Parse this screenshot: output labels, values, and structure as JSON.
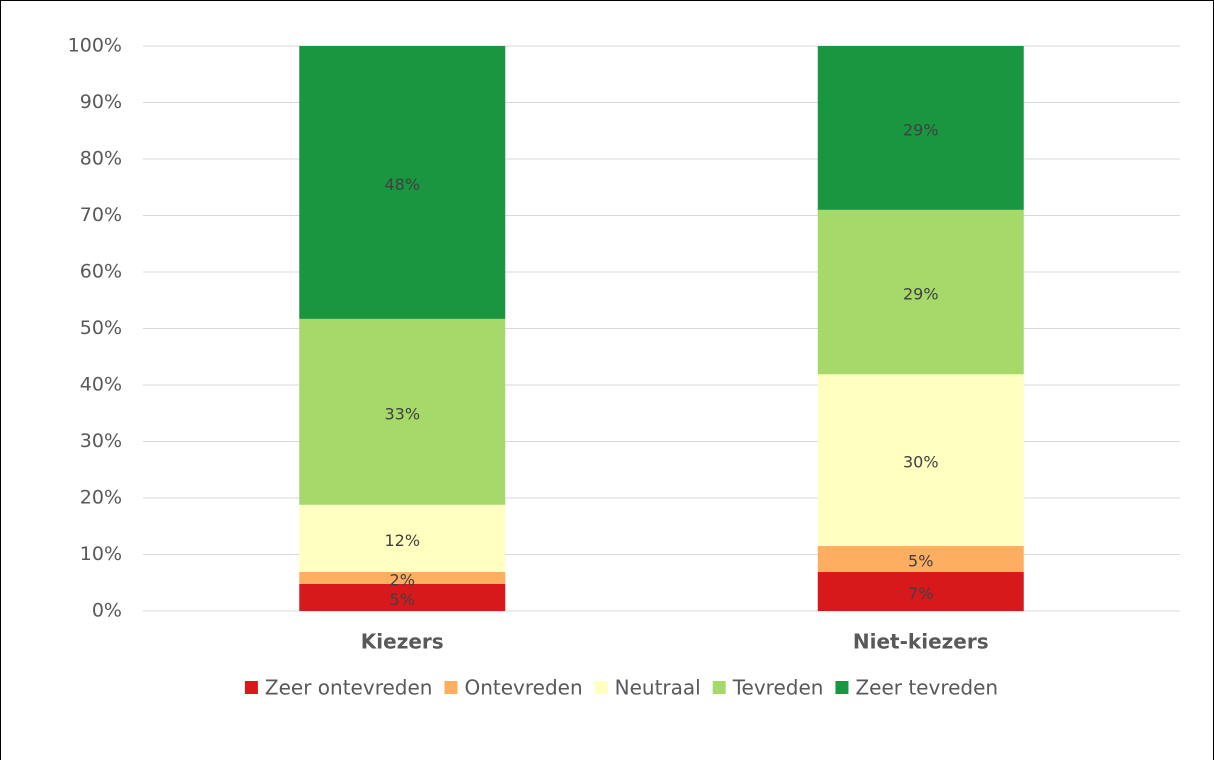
{
  "chart_data": {
    "type": "stacked_bar",
    "categories": [
      "Kiezers",
      "Niet-kiezers"
    ],
    "series": [
      {
        "name": "Zeer ontevreden",
        "color": "#d7191c",
        "values": [
          4.8,
          6.9
        ],
        "value_labels": [
          "5%",
          "7%"
        ]
      },
      {
        "name": "Ontevreden",
        "color": "#fdae61",
        "values": [
          2.1,
          4.6
        ],
        "value_labels": [
          "2%",
          "5%"
        ]
      },
      {
        "name": "Neutraal",
        "color": "#ffffbf",
        "values": [
          11.9,
          30.4
        ],
        "value_labels": [
          "12%",
          "30%"
        ]
      },
      {
        "name": "Tevreden",
        "color": "#a6d96a",
        "values": [
          32.9,
          29.1
        ],
        "value_labels": [
          "33%",
          "29%"
        ]
      },
      {
        "name": "Zeer tevreden",
        "color": "#1a9641",
        "values": [
          48.3,
          29.0
        ],
        "value_labels": [
          "48%",
          "29%"
        ]
      }
    ],
    "ylim": [
      0,
      100
    ],
    "yticks": [
      {
        "value": 0,
        "label": "0%"
      },
      {
        "value": 10,
        "label": "10%"
      },
      {
        "value": 20,
        "label": "20%"
      },
      {
        "value": 30,
        "label": "30%"
      },
      {
        "value": 40,
        "label": "40%"
      },
      {
        "value": 50,
        "label": "50%"
      },
      {
        "value": 60,
        "label": "60%"
      },
      {
        "value": 70,
        "label": "70%"
      },
      {
        "value": 80,
        "label": "80%"
      },
      {
        "value": 90,
        "label": "90%"
      },
      {
        "value": 100,
        "label": "100%"
      }
    ],
    "grid": true,
    "legend": "bottom"
  }
}
